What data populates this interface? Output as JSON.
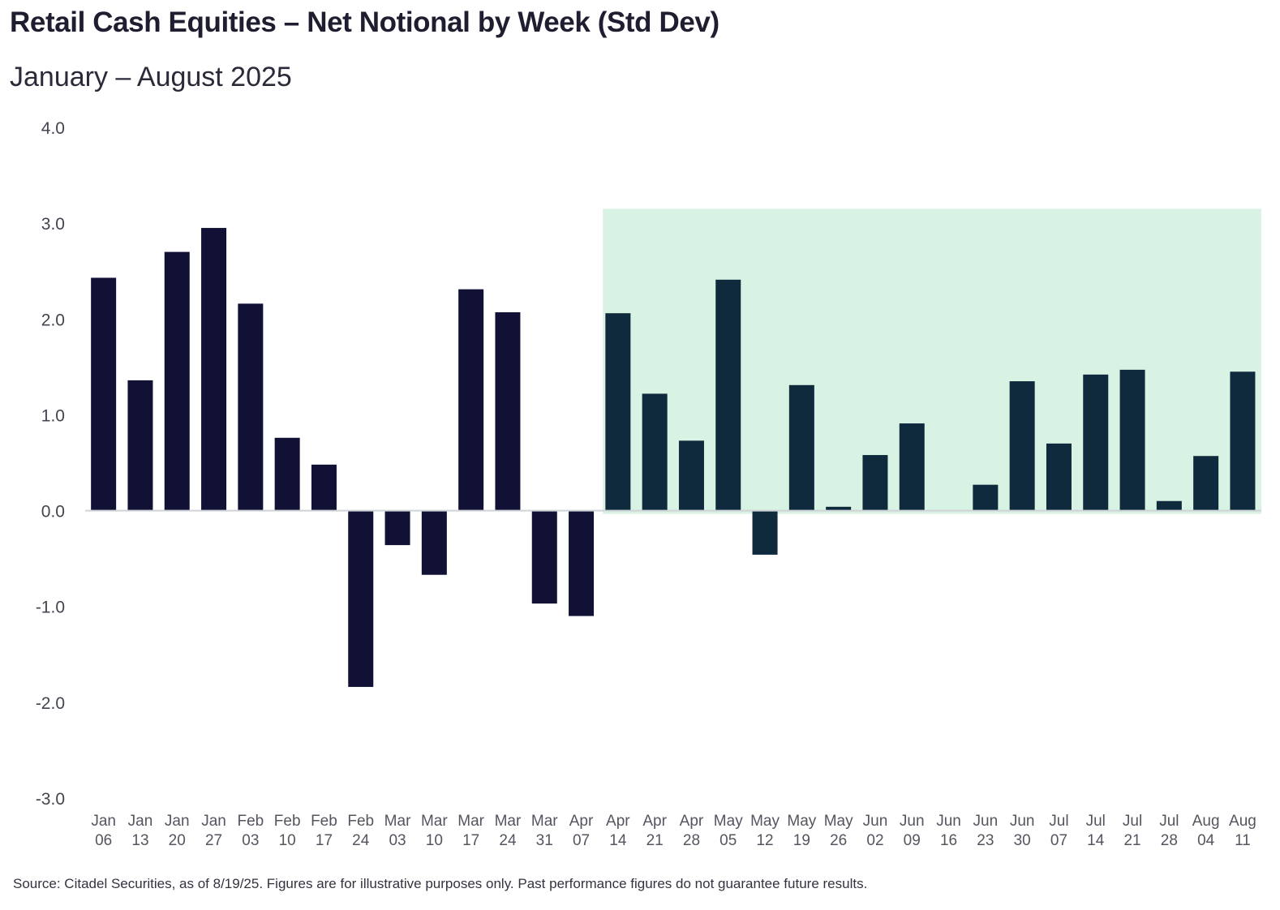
{
  "chart_data": {
    "type": "bar",
    "title": "Retail Cash Equities – Net Notional by Week (Std Dev)",
    "subtitle": "January – August 2025",
    "xlabel": "",
    "ylabel": "",
    "ylim": [
      -3.0,
      4.0
    ],
    "yticks": [
      "4.0",
      "3.0",
      "2.0",
      "1.0",
      "0.0",
      "-1.0",
      "-2.0",
      "-3.0"
    ],
    "ytick_values": [
      4,
      3,
      2,
      1,
      0,
      -1,
      -2,
      -3
    ],
    "categories": [
      [
        "Jan",
        "06"
      ],
      [
        "Jan",
        "13"
      ],
      [
        "Jan",
        "20"
      ],
      [
        "Jan",
        "27"
      ],
      [
        "Feb",
        "03"
      ],
      [
        "Feb",
        "10"
      ],
      [
        "Feb",
        "17"
      ],
      [
        "Feb",
        "24"
      ],
      [
        "Mar",
        "03"
      ],
      [
        "Mar",
        "10"
      ],
      [
        "Mar",
        "17"
      ],
      [
        "Mar",
        "24"
      ],
      [
        "Mar",
        "31"
      ],
      [
        "Apr",
        "07"
      ],
      [
        "Apr",
        "14"
      ],
      [
        "Apr",
        "21"
      ],
      [
        "Apr",
        "28"
      ],
      [
        "May",
        "05"
      ],
      [
        "May",
        "12"
      ],
      [
        "May",
        "19"
      ],
      [
        "May",
        "26"
      ],
      [
        "Jun",
        "02"
      ],
      [
        "Jun",
        "09"
      ],
      [
        "Jun",
        "16"
      ],
      [
        "Jun",
        "23"
      ],
      [
        "Jun",
        "30"
      ],
      [
        "Jul",
        "07"
      ],
      [
        "Jul",
        "14"
      ],
      [
        "Jul",
        "21"
      ],
      [
        "Jul",
        "28"
      ],
      [
        "Aug",
        "04"
      ],
      [
        "Aug",
        "11"
      ]
    ],
    "values": [
      2.43,
      1.36,
      2.7,
      2.95,
      2.16,
      0.76,
      0.48,
      -1.84,
      -0.36,
      -0.67,
      2.31,
      2.07,
      -0.97,
      -1.1,
      2.06,
      1.22,
      0.73,
      2.41,
      -0.46,
      1.31,
      0.04,
      0.58,
      0.91,
      0.0,
      0.27,
      1.35,
      0.7,
      1.42,
      1.47,
      0.1,
      0.57,
      1.45
    ],
    "highlight": {
      "from_index": 14,
      "to_index": 31,
      "y_top": 3.15,
      "color": "#d8f2e3"
    },
    "colors": {
      "bar_default": "#111135",
      "bar_highlight": "#0e2a3c"
    },
    "source": "Source: Citadel Securities, as of 8/19/25. Figures are for illustrative purposes only. Past performance figures do not guarantee future results."
  }
}
